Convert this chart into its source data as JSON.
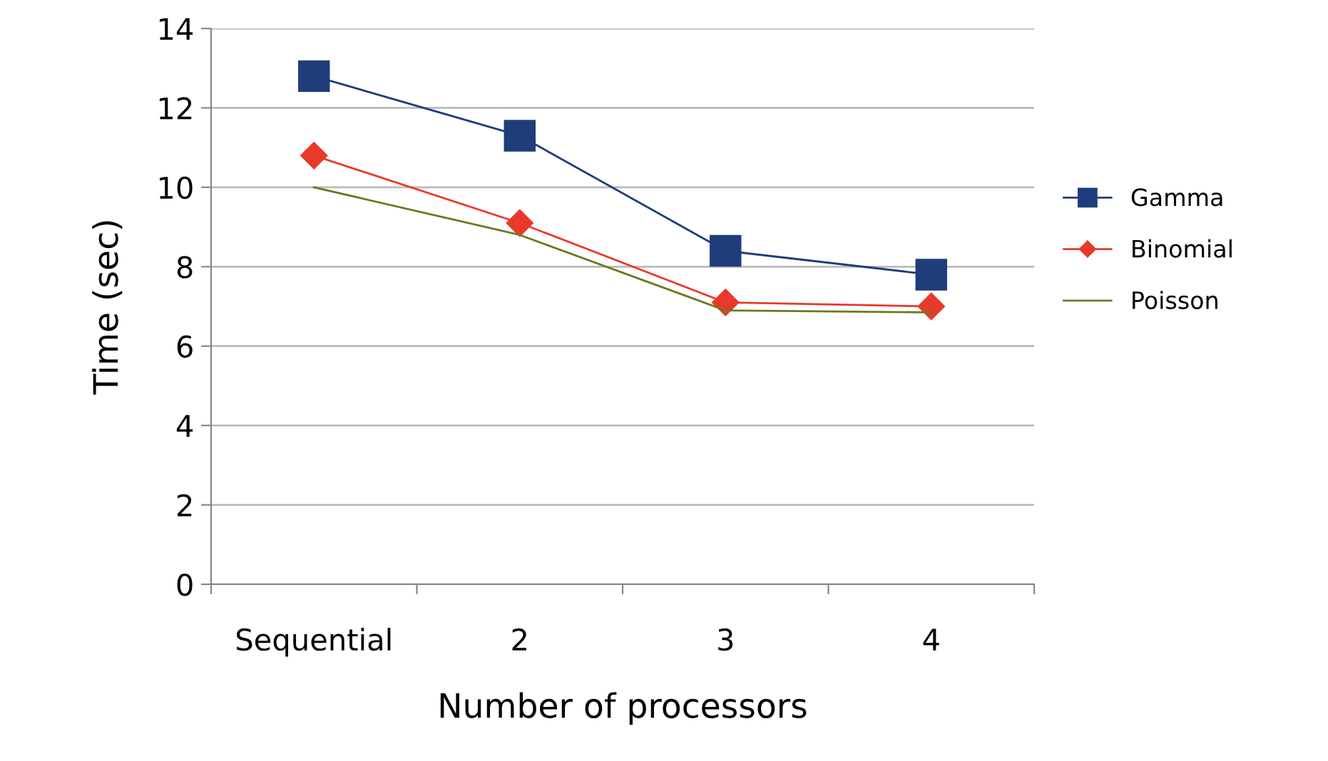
{
  "chart_data": {
    "type": "line",
    "xlabel": "Number of processors",
    "ylabel": "Time (sec)",
    "categories": [
      "Sequential",
      "2",
      "3",
      "4"
    ],
    "series": [
      {
        "name": "Gamma",
        "color": "#1f3d7a",
        "values": [
          12.8,
          11.3,
          8.4,
          7.8
        ],
        "marker": "square"
      },
      {
        "name": "Binomial",
        "color": "#e8392b",
        "values": [
          10.8,
          9.1,
          7.1,
          7.0
        ],
        "marker": "diamond"
      },
      {
        "name": "Poisson",
        "color": "#6b7a1e",
        "values": [
          10.0,
          8.8,
          6.9,
          6.85
        ],
        "marker": "none"
      }
    ],
    "ylim": [
      0,
      14
    ],
    "yticks": [
      0,
      2,
      4,
      6,
      8,
      10,
      12,
      14
    ],
    "grid": "y",
    "legend": "right",
    "line_style": "solid"
  }
}
